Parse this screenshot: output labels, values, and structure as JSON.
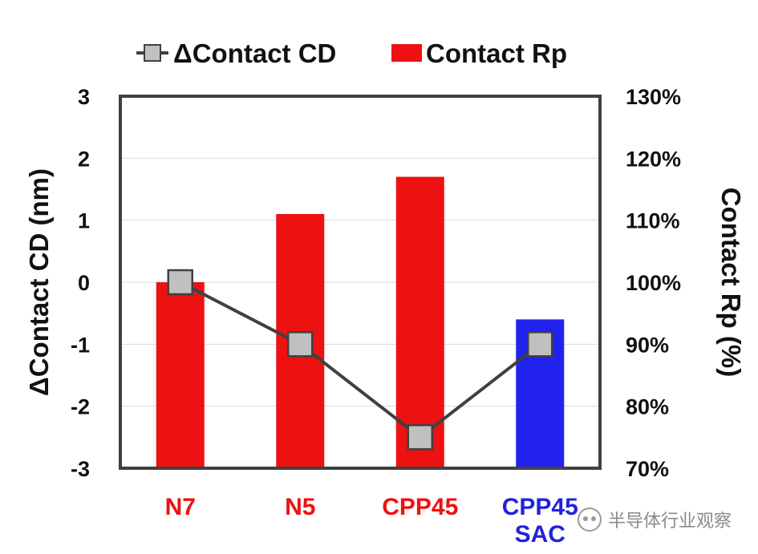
{
  "chart_data": {
    "type": "bar",
    "categories": [
      "N7",
      "N5",
      "CPP45",
      "CPP45\nSAC"
    ],
    "category_colors": [
      "#ee1111",
      "#ee1111",
      "#ee1111",
      "#2222dd"
    ],
    "series": [
      {
        "name": "ΔContact CD",
        "type": "line",
        "axis": "left",
        "values": [
          0,
          -1,
          -2.5,
          -1
        ],
        "line_color": "#404040",
        "marker_color": "#c0c0c0"
      },
      {
        "name": "Contact Rp",
        "type": "bar",
        "axis": "right",
        "values": [
          100,
          111,
          117,
          94
        ],
        "colors": [
          "#ee1111",
          "#ee1111",
          "#ee1111",
          "#2222ee"
        ]
      }
    ],
    "left_axis": {
      "label": "ΔContact CD (nm)",
      "ylim": [
        -3,
        3
      ],
      "ticks": [
        "3",
        "2",
        "1",
        "0",
        "-1",
        "-2",
        "-3"
      ]
    },
    "right_axis": {
      "label": "Contact Rp (%)",
      "ylim": [
        70,
        130
      ],
      "ticks": [
        "130%",
        "120%",
        "110%",
        "100%",
        "90%",
        "80%",
        "70%"
      ]
    },
    "grid": true,
    "legend_position": "top"
  },
  "watermark": "半导体行业观察"
}
